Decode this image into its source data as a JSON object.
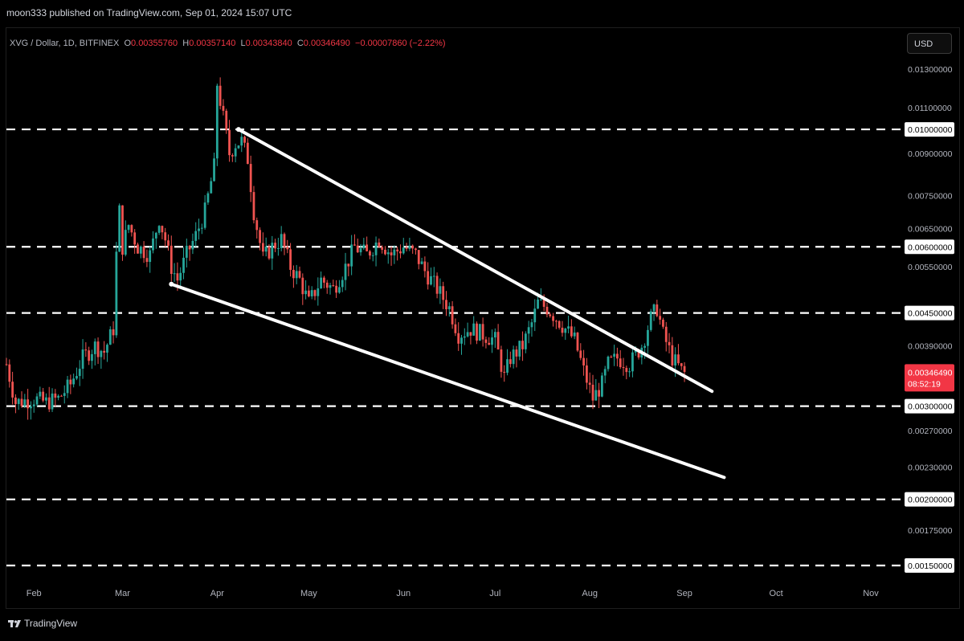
{
  "header": {
    "published_by": "moon333 published on TradingView.com, Sep 01, 2024 15:07 UTC"
  },
  "symbol_bar": {
    "symbol": "XVG / Dollar, 1D, BITFINEX",
    "open_label": "O",
    "open": "0.00355760",
    "high_label": "H",
    "high": "0.00357140",
    "low_label": "L",
    "low": "0.00343840",
    "close_label": "C",
    "close": "0.00346490",
    "change": "−0.00007860 (−2.22%)"
  },
  "price_axis": {
    "currency_button": "USD",
    "current_price": "0.00346490",
    "countdown": "08:52:19"
  },
  "footer": {
    "brand": "TradingView"
  },
  "colors": {
    "background": "#000000",
    "up": "#26a69a",
    "down": "#ef5350",
    "lines": "#ffffff",
    "price_tag": "#f23645"
  },
  "chart_data": {
    "type": "candlestick",
    "title": "XVG / Dollar, 1D, BITFINEX",
    "y_scale": "log",
    "ylim": [
      0.0014,
      0.0145
    ],
    "y_ticks": [
      {
        "value": 0.013,
        "label": "0.01300000"
      },
      {
        "value": 0.011,
        "label": "0.01100000"
      },
      {
        "value": 0.01,
        "label": "0.01000000",
        "highlight": true
      },
      {
        "value": 0.009,
        "label": "0.00900000"
      },
      {
        "value": 0.0075,
        "label": "0.00750000"
      },
      {
        "value": 0.0065,
        "label": "0.00650000"
      },
      {
        "value": 0.006,
        "label": "0.00600000",
        "highlight": true
      },
      {
        "value": 0.0055,
        "label": "0.00550000"
      },
      {
        "value": 0.0045,
        "label": "0.00450000",
        "highlight": true
      },
      {
        "value": 0.0039,
        "label": "0.00390000"
      },
      {
        "value": 0.003,
        "label": "0.00300000",
        "highlight": true
      },
      {
        "value": 0.0027,
        "label": "0.00270000"
      },
      {
        "value": 0.0023,
        "label": "0.00230000"
      },
      {
        "value": 0.002,
        "label": "0.00200000",
        "highlight": true
      },
      {
        "value": 0.00175,
        "label": "0.00175000"
      },
      {
        "value": 0.0015,
        "label": "0.00150000",
        "highlight": true
      }
    ],
    "x_ticks": [
      {
        "label": "Feb",
        "date": "2024-02-01"
      },
      {
        "label": "Mar",
        "date": "2024-03-01"
      },
      {
        "label": "Apr",
        "date": "2024-04-01"
      },
      {
        "label": "May",
        "date": "2024-05-01"
      },
      {
        "label": "Jun",
        "date": "2024-06-01"
      },
      {
        "label": "Jul",
        "date": "2024-07-01"
      },
      {
        "label": "Aug",
        "date": "2024-08-01"
      },
      {
        "label": "Sep",
        "date": "2024-09-01"
      },
      {
        "label": "Oct",
        "date": "2024-10-01"
      },
      {
        "label": "Nov",
        "date": "2024-11-01"
      }
    ],
    "xlim": [
      "2024-01-23",
      "2024-11-11"
    ],
    "horizontal_levels": [
      0.01,
      0.006,
      0.0045,
      0.003,
      0.002,
      0.0015
    ],
    "trendlines": [
      {
        "name": "upper",
        "from": {
          "date": "2024-04-08",
          "price": 0.01
        },
        "to": {
          "date": "2024-09-10",
          "price": 0.0032
        }
      },
      {
        "name": "lower",
        "from": {
          "date": "2024-03-17",
          "price": 0.0051
        },
        "to": {
          "date": "2024-09-14",
          "price": 0.0022
        }
      }
    ],
    "close_points": [
      [
        "2024-01-23",
        0.0036
      ],
      [
        "2024-01-26",
        0.00305
      ],
      [
        "2024-02-01",
        0.0031
      ],
      [
        "2024-02-05",
        0.00305
      ],
      [
        "2024-02-09",
        0.0031
      ],
      [
        "2024-02-13",
        0.0033
      ],
      [
        "2024-02-17",
        0.0037
      ],
      [
        "2024-02-21",
        0.0039
      ],
      [
        "2024-02-24",
        0.0038
      ],
      [
        "2024-02-27",
        0.0042
      ],
      [
        "2024-02-28",
        0.0058
      ],
      [
        "2024-02-29",
        0.007
      ],
      [
        "2024-03-01",
        0.006
      ],
      [
        "2024-03-03",
        0.0066
      ],
      [
        "2024-03-06",
        0.006
      ],
      [
        "2024-03-10",
        0.0058
      ],
      [
        "2024-03-13",
        0.0068
      ],
      [
        "2024-03-15",
        0.0062
      ],
      [
        "2024-03-17",
        0.0055
      ],
      [
        "2024-03-19",
        0.0052
      ],
      [
        "2024-03-22",
        0.0058
      ],
      [
        "2024-03-25",
        0.0063
      ],
      [
        "2024-03-28",
        0.007
      ],
      [
        "2024-03-31",
        0.0085
      ],
      [
        "2024-04-01",
        0.0122
      ],
      [
        "2024-04-03",
        0.0105
      ],
      [
        "2024-04-05",
        0.009
      ],
      [
        "2024-04-07",
        0.0094
      ],
      [
        "2024-04-09",
        0.0095
      ],
      [
        "2024-04-11",
        0.0088
      ],
      [
        "2024-04-13",
        0.007
      ],
      [
        "2024-04-16",
        0.0057
      ],
      [
        "2024-04-19",
        0.006
      ],
      [
        "2024-04-22",
        0.0062
      ],
      [
        "2024-04-25",
        0.0055
      ],
      [
        "2024-04-28",
        0.0052
      ],
      [
        "2024-05-01",
        0.0047
      ],
      [
        "2024-05-05",
        0.0052
      ],
      [
        "2024-05-09",
        0.005
      ],
      [
        "2024-05-13",
        0.0055
      ],
      [
        "2024-05-16",
        0.006
      ],
      [
        "2024-05-20",
        0.0058
      ],
      [
        "2024-05-24",
        0.0062
      ],
      [
        "2024-05-28",
        0.0058
      ],
      [
        "2024-06-01",
        0.006
      ],
      [
        "2024-06-05",
        0.0058
      ],
      [
        "2024-06-08",
        0.0054
      ],
      [
        "2024-06-12",
        0.005
      ],
      [
        "2024-06-16",
        0.0046
      ],
      [
        "2024-06-19",
        0.0041
      ],
      [
        "2024-06-23",
        0.0042
      ],
      [
        "2024-06-27",
        0.0041
      ],
      [
        "2024-07-01",
        0.004
      ],
      [
        "2024-07-04",
        0.0034
      ],
      [
        "2024-07-06",
        0.0037
      ],
      [
        "2024-07-10",
        0.0039
      ],
      [
        "2024-07-13",
        0.0043
      ],
      [
        "2024-07-15",
        0.0047
      ],
      [
        "2024-07-18",
        0.0046
      ],
      [
        "2024-07-21",
        0.0044
      ],
      [
        "2024-07-24",
        0.0042
      ],
      [
        "2024-07-27",
        0.004
      ],
      [
        "2024-07-30",
        0.0035
      ],
      [
        "2024-08-02",
        0.0031
      ],
      [
        "2024-08-05",
        0.0033
      ],
      [
        "2024-08-07",
        0.0036
      ],
      [
        "2024-08-10",
        0.0037
      ],
      [
        "2024-08-14",
        0.0036
      ],
      [
        "2024-08-18",
        0.0039
      ],
      [
        "2024-08-21",
        0.0044
      ],
      [
        "2024-08-23",
        0.0046
      ],
      [
        "2024-08-25",
        0.0041
      ],
      [
        "2024-08-28",
        0.0037
      ],
      [
        "2024-08-31",
        0.0035
      ],
      [
        "2024-09-01",
        0.00346
      ]
    ]
  }
}
